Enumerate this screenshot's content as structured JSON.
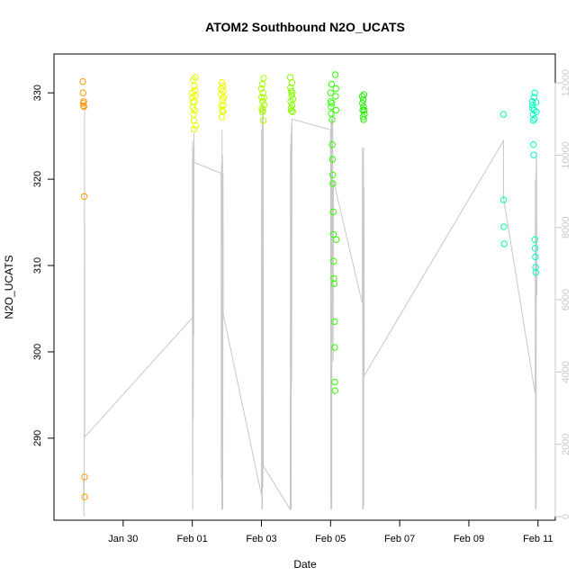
{
  "chart_data": {
    "type": "scatter",
    "title": "ATOM2 Southbound N2O_UCATS",
    "xlabel": "Date",
    "ylabel": "N2O_UCATS",
    "x_range": [
      "2017-01-28",
      "2017-02-11T12:00"
    ],
    "x_ticks": [
      {
        "date": "2017-01-30",
        "label": "Jan 30"
      },
      {
        "date": "2017-02-01",
        "label": "Feb 01"
      },
      {
        "date": "2017-02-03",
        "label": "Feb 03"
      },
      {
        "date": "2017-02-05",
        "label": "Feb 05"
      },
      {
        "date": "2017-02-07",
        "label": "Feb 07"
      },
      {
        "date": "2017-02-09",
        "label": "Feb 09"
      },
      {
        "date": "2017-02-11",
        "label": "Feb 11"
      }
    ],
    "ylim": [
      280.5,
      334.5
    ],
    "y_ticks": [
      290,
      300,
      310,
      320,
      330
    ],
    "y2lim": [
      -100,
      12800
    ],
    "y2_ticks": [
      0,
      2000,
      4000,
      6000,
      8000,
      10000,
      12000
    ],
    "y2_color": "#c8c8c8",
    "grid": false,
    "legend": "none",
    "series": [
      {
        "axis": "left",
        "color": "#ff9900",
        "points": [
          [
            "2017-01-28T20:00",
            331.3
          ],
          [
            "2017-01-28T20:10",
            330.0
          ],
          [
            "2017-01-28T20:20",
            328.8
          ],
          [
            "2017-01-28T20:30",
            328.5
          ],
          [
            "2017-01-28T20:40",
            329.0
          ],
          [
            "2017-01-28T20:50",
            328.4
          ],
          [
            "2017-01-28T21:00",
            318.0
          ],
          [
            "2017-01-28T21:10",
            285.5
          ],
          [
            "2017-01-28T21:20",
            283.2
          ]
        ]
      },
      {
        "axis": "left",
        "color": "#e6ff00",
        "points": [
          [
            "2017-02-01T00:00",
            330.0
          ],
          [
            "2017-02-01T00:10",
            329.5
          ],
          [
            "2017-02-01T00:20",
            328.9
          ],
          [
            "2017-02-01T00:30",
            328.3
          ],
          [
            "2017-02-01T00:40",
            331.5
          ],
          [
            "2017-02-01T00:50",
            327.5
          ],
          [
            "2017-02-01T01:00",
            326.8
          ],
          [
            "2017-02-01T01:10",
            325.8
          ],
          [
            "2017-02-01T01:20",
            330.8
          ],
          [
            "2017-02-01T01:30",
            329.0
          ],
          [
            "2017-02-01T01:40",
            328.0
          ],
          [
            "2017-02-01T01:50",
            330.3
          ],
          [
            "2017-02-01T02:00",
            329.7
          ],
          [
            "2017-02-01T02:10",
            331.8
          ],
          [
            "2017-02-01T02:20",
            326.2
          ]
        ]
      },
      {
        "axis": "left",
        "color": "#e6ff00",
        "points": [
          [
            "2017-02-01T20:00",
            330.5
          ],
          [
            "2017-02-01T20:10",
            329.8
          ],
          [
            "2017-02-01T20:20",
            328.5
          ],
          [
            "2017-02-01T20:30",
            327.2
          ],
          [
            "2017-02-01T20:40",
            331.2
          ],
          [
            "2017-02-01T20:50",
            328.0
          ],
          [
            "2017-02-01T21:00",
            329.2
          ],
          [
            "2017-02-01T21:10",
            330.8
          ],
          [
            "2017-02-01T21:20",
            327.8
          ],
          [
            "2017-02-01T21:30",
            330.2
          ],
          [
            "2017-02-01T21:40",
            328.6
          ],
          [
            "2017-02-01T21:50",
            329.5
          ]
        ]
      },
      {
        "axis": "left",
        "color": "#aaff00",
        "points": [
          [
            "2017-02-03T00:00",
            330.5
          ],
          [
            "2017-02-03T00:10",
            329.5
          ],
          [
            "2017-02-03T00:20",
            328.2
          ],
          [
            "2017-02-03T00:30",
            331.0
          ],
          [
            "2017-02-03T00:40",
            327.8
          ],
          [
            "2017-02-03T00:50",
            329.0
          ],
          [
            "2017-02-03T01:00",
            328.0
          ],
          [
            "2017-02-03T01:10",
            330.0
          ],
          [
            "2017-02-03T01:20",
            326.8
          ],
          [
            "2017-02-03T01:30",
            331.7
          ],
          [
            "2017-02-03T01:40",
            329.4
          ],
          [
            "2017-02-03T01:50",
            328.6
          ]
        ]
      },
      {
        "axis": "left",
        "color": "#88ff00",
        "points": [
          [
            "2017-02-03T20:00",
            331.8
          ],
          [
            "2017-02-03T20:10",
            330.6
          ],
          [
            "2017-02-03T20:20",
            329.0
          ],
          [
            "2017-02-03T20:30",
            328.2
          ],
          [
            "2017-02-03T20:40",
            330.2
          ],
          [
            "2017-02-03T20:50",
            327.9
          ],
          [
            "2017-02-03T21:00",
            329.7
          ],
          [
            "2017-02-03T21:10",
            331.2
          ],
          [
            "2017-02-03T21:20",
            328.6
          ],
          [
            "2017-02-03T21:30",
            330.0
          ],
          [
            "2017-02-03T21:40",
            327.8
          ],
          [
            "2017-02-03T21:50",
            329.3
          ]
        ]
      },
      {
        "axis": "left",
        "color": "#33ff00",
        "points": [
          [
            "2017-02-05T00:00",
            330.0
          ],
          [
            "2017-02-05T00:10",
            329.0
          ],
          [
            "2017-02-05T00:20",
            328.4
          ],
          [
            "2017-02-05T00:30",
            327.6
          ],
          [
            "2017-02-05T00:40",
            331.0
          ],
          [
            "2017-02-05T00:50",
            328.8
          ],
          [
            "2017-02-05T01:00",
            326.9
          ],
          [
            "2017-02-05T01:10",
            324.0
          ],
          [
            "2017-02-05T01:20",
            322.3
          ],
          [
            "2017-02-05T01:30",
            320.5
          ],
          [
            "2017-02-05T01:40",
            319.5
          ],
          [
            "2017-02-05T01:50",
            316.2
          ],
          [
            "2017-02-05T02:00",
            313.6
          ],
          [
            "2017-02-05T02:10",
            310.5
          ],
          [
            "2017-02-05T02:20",
            308.5
          ],
          [
            "2017-02-05T02:30",
            307.9
          ],
          [
            "2017-02-05T02:40",
            303.5
          ],
          [
            "2017-02-05T02:50",
            300.5
          ],
          [
            "2017-02-05T03:00",
            296.5
          ],
          [
            "2017-02-05T03:10",
            295.5
          ],
          [
            "2017-02-05T03:20",
            332.1
          ],
          [
            "2017-02-05T03:30",
            329.6
          ],
          [
            "2017-02-05T03:40",
            330.5
          ],
          [
            "2017-02-05T03:50",
            328.0
          ],
          [
            "2017-02-05T04:00",
            313.0
          ]
        ]
      },
      {
        "axis": "left",
        "color": "#22ee00",
        "points": [
          [
            "2017-02-05T22:00",
            329.6
          ],
          [
            "2017-02-05T22:10",
            328.8
          ],
          [
            "2017-02-05T22:20",
            328.0
          ],
          [
            "2017-02-05T22:30",
            327.2
          ],
          [
            "2017-02-05T22:40",
            329.2
          ],
          [
            "2017-02-05T22:50",
            328.4
          ],
          [
            "2017-02-05T23:00",
            326.9
          ],
          [
            "2017-02-05T23:10",
            329.8
          ],
          [
            "2017-02-05T23:20",
            328.0
          ],
          [
            "2017-02-05T23:30",
            327.5
          ]
        ]
      },
      {
        "axis": "left",
        "color": "#00ffb0",
        "points": [
          [
            "2017-02-10T00:00",
            327.5
          ],
          [
            "2017-02-10T00:10",
            317.6
          ],
          [
            "2017-02-10T00:20",
            314.5
          ],
          [
            "2017-02-10T00:30",
            312.5
          ]
        ]
      },
      {
        "axis": "left",
        "color": "#00ffc0",
        "points": [
          [
            "2017-02-10T20:00",
            329.0
          ],
          [
            "2017-02-10T20:10",
            328.6
          ],
          [
            "2017-02-10T20:20",
            328.2
          ],
          [
            "2017-02-10T20:30",
            327.5
          ],
          [
            "2017-02-10T20:40",
            326.8
          ],
          [
            "2017-02-10T20:50",
            324.0
          ],
          [
            "2017-02-10T21:00",
            322.8
          ],
          [
            "2017-02-10T21:10",
            329.5
          ],
          [
            "2017-02-10T21:20",
            328.0
          ],
          [
            "2017-02-10T21:30",
            327.0
          ],
          [
            "2017-02-10T21:40",
            330.0
          ],
          [
            "2017-02-10T21:50",
            313.0
          ],
          [
            "2017-02-10T22:00",
            312.0
          ],
          [
            "2017-02-10T22:10",
            311.0
          ],
          [
            "2017-02-10T22:20",
            309.8
          ],
          [
            "2017-02-10T22:30",
            309.2
          ],
          [
            "2017-02-10T22:40",
            328.9
          ],
          [
            "2017-02-10T22:50",
            327.8
          ]
        ]
      },
      {
        "axis": "right",
        "type": "line",
        "color": "#c8c8c8",
        "points": [
          [
            "2017-01-28T20:30",
            1000
          ],
          [
            "2017-01-28T20:45",
            0
          ],
          [
            "2017-01-28T21:00",
            1200
          ],
          [
            "2017-01-28T21:10",
            11400
          ],
          [
            "2017-01-28T21:20",
            2200
          ],
          [
            "2017-02-01T00:00",
            5500
          ],
          [
            "2017-02-01T00:05",
            9900
          ],
          [
            "2017-02-01T00:10",
            1100
          ],
          [
            "2017-02-01T00:15",
            10400
          ],
          [
            "2017-02-01T00:20",
            200
          ],
          [
            "2017-02-01T00:30",
            10200
          ],
          [
            "2017-02-01T00:40",
            2700
          ],
          [
            "2017-02-01T00:50",
            6300
          ],
          [
            "2017-02-01T01:00",
            5000
          ],
          [
            "2017-02-01T01:10",
            10600
          ],
          [
            "2017-02-01T01:20",
            9800
          ],
          [
            "2017-02-01T20:00",
            9500
          ],
          [
            "2017-02-01T20:10",
            1000
          ],
          [
            "2017-02-01T20:20",
            9800
          ],
          [
            "2017-02-01T20:30",
            200
          ],
          [
            "2017-02-01T20:40",
            10700
          ],
          [
            "2017-02-01T20:50",
            1600
          ],
          [
            "2017-02-01T21:00",
            10000
          ],
          [
            "2017-02-01T21:10",
            200
          ],
          [
            "2017-02-01T21:20",
            9500
          ],
          [
            "2017-02-01T21:30",
            5600
          ],
          [
            "2017-02-03T00:00",
            600
          ],
          [
            "2017-02-03T00:10",
            10700
          ],
          [
            "2017-02-03T00:20",
            200
          ],
          [
            "2017-02-03T00:30",
            11000
          ],
          [
            "2017-02-03T00:40",
            200
          ],
          [
            "2017-02-03T00:50",
            11300
          ],
          [
            "2017-02-03T01:00",
            800
          ],
          [
            "2017-02-03T01:10",
            11400
          ],
          [
            "2017-02-03T01:20",
            1400
          ],
          [
            "2017-02-03T20:00",
            200
          ],
          [
            "2017-02-03T20:10",
            10300
          ],
          [
            "2017-02-03T20:20",
            200
          ],
          [
            "2017-02-03T20:30",
            10600
          ],
          [
            "2017-02-03T20:40",
            200
          ],
          [
            "2017-02-03T20:50",
            10800
          ],
          [
            "2017-02-03T21:00",
            3700
          ],
          [
            "2017-02-03T21:10",
            11000
          ],
          [
            "2017-02-05T00:00",
            10700
          ],
          [
            "2017-02-05T00:10",
            200
          ],
          [
            "2017-02-05T00:20",
            10900
          ],
          [
            "2017-02-05T00:30",
            300
          ],
          [
            "2017-02-05T00:40",
            11000
          ],
          [
            "2017-02-05T00:50",
            200
          ],
          [
            "2017-02-05T01:00",
            9800
          ],
          [
            "2017-02-05T01:10",
            11100
          ],
          [
            "2017-02-05T01:20",
            7000
          ],
          [
            "2017-02-05T01:30",
            11300
          ],
          [
            "2017-02-05T01:40",
            4500
          ],
          [
            "2017-02-05T01:50",
            4300
          ],
          [
            "2017-02-05T02:00",
            9300
          ],
          [
            "2017-02-05T22:00",
            5900
          ],
          [
            "2017-02-05T22:10",
            10200
          ],
          [
            "2017-02-05T22:20",
            200
          ],
          [
            "2017-02-05T22:30",
            10000
          ],
          [
            "2017-02-05T22:40",
            200
          ],
          [
            "2017-02-05T22:50",
            10200
          ],
          [
            "2017-02-05T23:00",
            300
          ],
          [
            "2017-02-05T23:10",
            9100
          ],
          [
            "2017-02-05T23:20",
            3900
          ],
          [
            "2017-02-10T00:00",
            10400
          ],
          [
            "2017-02-10T00:10",
            8800
          ],
          [
            "2017-02-10T22:00",
            3400
          ],
          [
            "2017-02-10T22:10",
            9300
          ],
          [
            "2017-02-10T22:20",
            200
          ],
          [
            "2017-02-10T22:30",
            9500
          ],
          [
            "2017-02-10T22:40",
            200
          ],
          [
            "2017-02-10T22:50",
            10000
          ],
          [
            "2017-02-10T23:00",
            9800
          ],
          [
            "2017-02-10T23:10",
            6100
          ]
        ]
      }
    ]
  }
}
